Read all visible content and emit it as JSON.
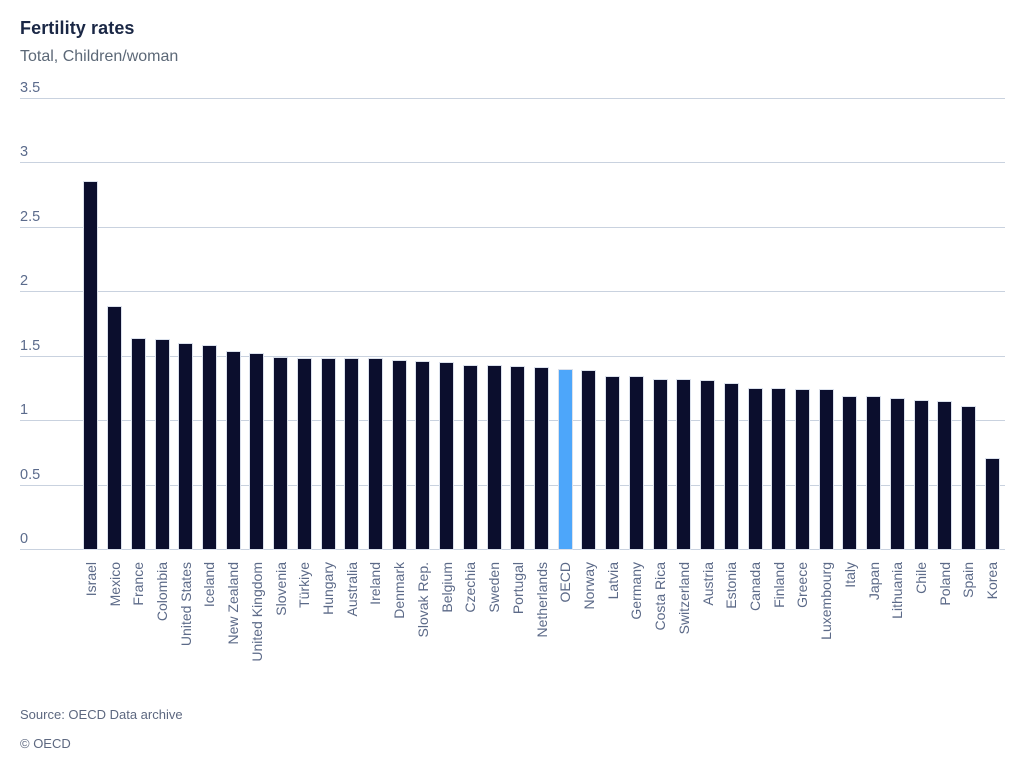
{
  "header": {
    "title": "Fertility rates",
    "subtitle": "Total, Children/woman"
  },
  "footer": {
    "source": "Source: OECD Data archive",
    "copyright": "© OECD"
  },
  "chart_data": {
    "type": "bar",
    "title": "Fertility rates",
    "subtitle": "Total, Children/woman",
    "xlabel": "",
    "ylabel": "Children/woman",
    "ylim": [
      0,
      3.5
    ],
    "ytick_labels": [
      "3.5",
      "3",
      "2.5",
      "2",
      "1.5",
      "1",
      "0.5",
      "0"
    ],
    "grid": true,
    "legend": false,
    "bar_color": "#0b0e2d",
    "highlight_color": "#4da6fa",
    "highlight_category": "OECD",
    "categories": [
      "Israel",
      "Mexico",
      "France",
      "Colombia",
      "United States",
      "Iceland",
      "New Zealand",
      "United Kingdom",
      "Slovenia",
      "Türkiye",
      "Hungary",
      "Australia",
      "Ireland",
      "Denmark",
      "Slovak Rep.",
      "Belgium",
      "Czechia",
      "Sweden",
      "Portugal",
      "Netherlands",
      "OECD",
      "Norway",
      "Latvia",
      "Germany",
      "Costa Rica",
      "Switzerland",
      "Austria",
      "Estonia",
      "Canada",
      "Finland",
      "Greece",
      "Luxembourg",
      "Italy",
      "Japan",
      "Lithuania",
      "Chile",
      "Poland",
      "Spain",
      "Korea"
    ],
    "values": [
      2.86,
      1.89,
      1.64,
      1.63,
      1.6,
      1.58,
      1.54,
      1.52,
      1.49,
      1.48,
      1.48,
      1.48,
      1.48,
      1.47,
      1.46,
      1.45,
      1.43,
      1.43,
      1.42,
      1.41,
      1.4,
      1.39,
      1.34,
      1.34,
      1.32,
      1.32,
      1.31,
      1.29,
      1.25,
      1.25,
      1.24,
      1.24,
      1.19,
      1.19,
      1.17,
      1.16,
      1.15,
      1.11,
      0.71
    ]
  }
}
